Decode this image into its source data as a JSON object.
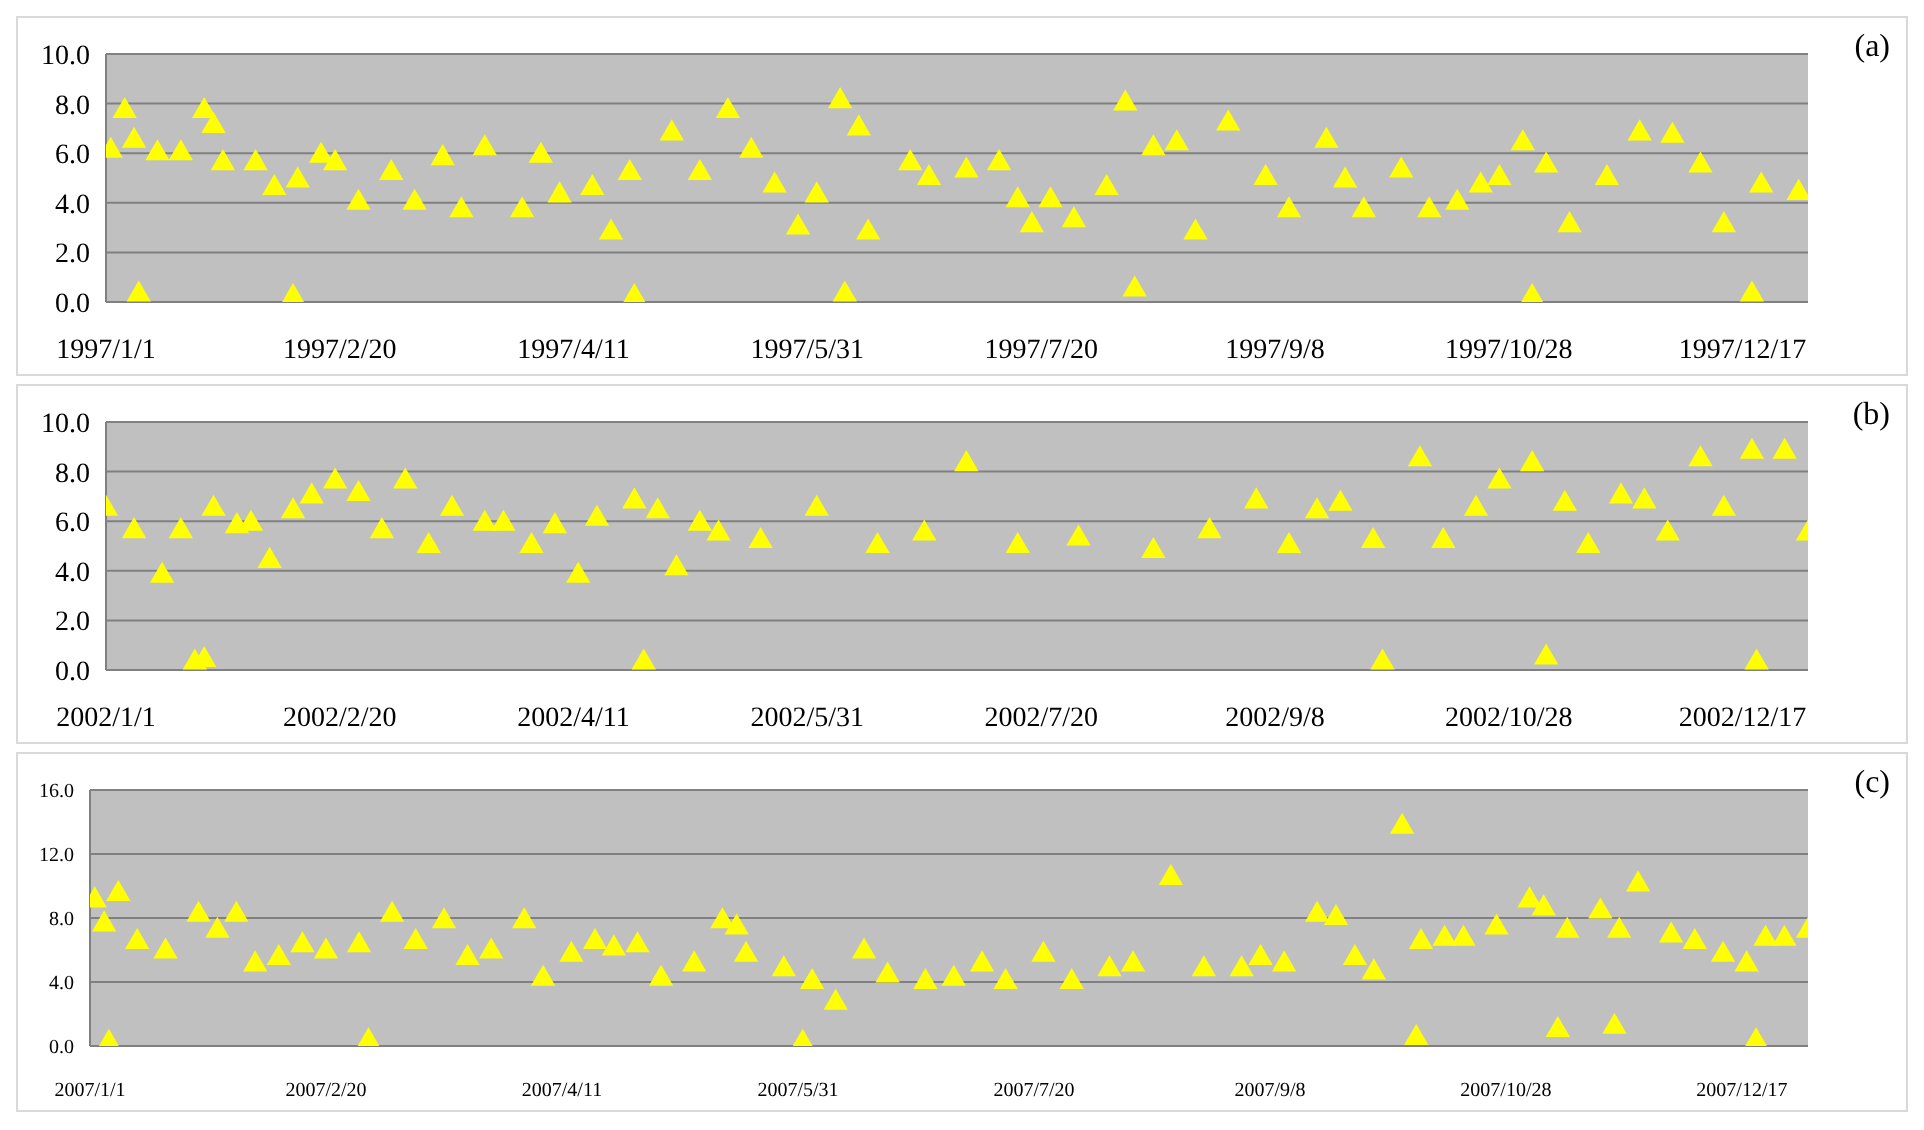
{
  "chart_data": [
    {
      "type": "scatter",
      "annotations": [
        "(a)"
      ],
      "color": "#ffff00",
      "marker": "triangle",
      "grid": "y",
      "xlim": [
        "1997-01-01",
        "1997-12-31"
      ],
      "xticks": [
        {
          "value": "1997-01-01",
          "label": "1997/1/1"
        },
        {
          "value": "1997-02-20",
          "label": "1997/2/20"
        },
        {
          "value": "1997-04-11",
          "label": "1997/4/11"
        },
        {
          "value": "1997-05-31",
          "label": "1997/5/31"
        },
        {
          "value": "1997-07-20",
          "label": "1997/7/20"
        },
        {
          "value": "1997-09-08",
          "label": "1997/9/8"
        },
        {
          "value": "1997-10-28",
          "label": "1997/10/28"
        },
        {
          "value": "1997-12-17",
          "label": "1997/12/17"
        }
      ],
      "ylim": [
        0,
        10
      ],
      "yticks": [
        {
          "value": 0,
          "label": "0.0"
        },
        {
          "value": 2,
          "label": "2.0"
        },
        {
          "value": 4,
          "label": "4.0"
        },
        {
          "value": 6,
          "label": "6.0"
        },
        {
          "value": 8,
          "label": "8.0"
        },
        {
          "value": 10,
          "label": "10.0"
        }
      ],
      "x": [
        "1997-01-02",
        "1997-01-05",
        "1997-01-07",
        "1997-01-12",
        "1997-01-17",
        "1997-01-22",
        "1997-01-24",
        "1997-01-26",
        "1997-02-02",
        "1997-02-06",
        "1997-02-11",
        "1997-02-16",
        "1997-02-19",
        "1997-02-24",
        "1997-03-03",
        "1997-03-08",
        "1997-03-14",
        "1997-03-18",
        "1997-03-23",
        "1997-03-31",
        "1997-04-04",
        "1997-04-08",
        "1997-04-15",
        "1997-04-19",
        "1997-04-23",
        "1997-05-02",
        "1997-05-08",
        "1997-05-14",
        "1997-05-19",
        "1997-05-24",
        "1997-05-29",
        "1997-06-02",
        "1997-06-07",
        "1997-06-11",
        "1997-06-13",
        "1997-06-22",
        "1997-06-26",
        "1997-07-04",
        "1997-07-11",
        "1997-07-15",
        "1997-07-18",
        "1997-07-22",
        "1997-07-27",
        "1997-08-03",
        "1997-08-07",
        "1997-08-13",
        "1997-08-18",
        "1997-08-22",
        "1997-08-29",
        "1997-09-06",
        "1997-09-11",
        "1997-09-19",
        "1997-09-23",
        "1997-09-27",
        "1997-10-05",
        "1997-10-11",
        "1997-10-17",
        "1997-10-22",
        "1997-10-26",
        "1997-10-31",
        "1997-11-05",
        "1997-11-10",
        "1997-11-18",
        "1997-11-25",
        "1997-12-02",
        "1997-12-08",
        "1997-12-13",
        "1997-12-21",
        "1997-12-29",
        "1997-01-08",
        "1997-02-10",
        "1997-04-24",
        "1997-06-08",
        "1997-08-09",
        "1997-11-02",
        "1997-12-19"
      ],
      "values": [
        6.1,
        7.7,
        6.5,
        6.0,
        6.0,
        7.7,
        7.1,
        5.6,
        5.6,
        4.6,
        4.9,
        5.9,
        5.6,
        4.0,
        5.2,
        4.0,
        5.8,
        3.7,
        6.2,
        3.7,
        5.9,
        4.3,
        4.6,
        2.8,
        5.2,
        6.8,
        5.2,
        7.7,
        6.1,
        4.7,
        3.0,
        4.3,
        8.1,
        7.0,
        2.8,
        5.6,
        5.0,
        5.3,
        5.6,
        4.1,
        3.1,
        4.1,
        3.3,
        4.6,
        8.0,
        6.2,
        6.4,
        2.8,
        7.2,
        5.0,
        3.7,
        6.5,
        4.9,
        3.7,
        5.3,
        3.7,
        4.0,
        4.7,
        5.0,
        6.4,
        5.5,
        3.1,
        5.0,
        6.8,
        6.7,
        5.5,
        3.1,
        4.7,
        4.4,
        0.3,
        0.2,
        0.2,
        0.3,
        0.5,
        0.2,
        0.3
      ]
    },
    {
      "type": "scatter",
      "annotations": [
        "(b)"
      ],
      "color": "#ffff00",
      "marker": "triangle",
      "grid": "y",
      "xlim": [
        "2002-01-01",
        "2002-12-31"
      ],
      "xticks": [
        {
          "value": "2002-01-01",
          "label": "2002/1/1"
        },
        {
          "value": "2002-02-20",
          "label": "2002/2/20"
        },
        {
          "value": "2002-04-11",
          "label": "2002/4/11"
        },
        {
          "value": "2002-05-31",
          "label": "2002/5/31"
        },
        {
          "value": "2002-07-20",
          "label": "2002/7/20"
        },
        {
          "value": "2002-09-08",
          "label": "2002/9/8"
        },
        {
          "value": "2002-10-28",
          "label": "2002/10/28"
        },
        {
          "value": "2002-12-17",
          "label": "2002/12/17"
        }
      ],
      "ylim": [
        0,
        10
      ],
      "yticks": [
        {
          "value": 0,
          "label": "0.0"
        },
        {
          "value": 2,
          "label": "2.0"
        },
        {
          "value": 4,
          "label": "4.0"
        },
        {
          "value": 6,
          "label": "6.0"
        },
        {
          "value": 8,
          "label": "8.0"
        },
        {
          "value": 10,
          "label": "10.0"
        }
      ],
      "x": [
        "2002-01-01",
        "2002-01-07",
        "2002-01-13",
        "2002-01-17",
        "2002-01-24",
        "2002-01-29",
        "2002-02-01",
        "2002-02-05",
        "2002-02-10",
        "2002-02-14",
        "2002-02-19",
        "2002-02-24",
        "2002-03-01",
        "2002-03-06",
        "2002-03-11",
        "2002-03-16",
        "2002-03-23",
        "2002-03-27",
        "2002-04-02",
        "2002-04-07",
        "2002-04-12",
        "2002-04-16",
        "2002-04-24",
        "2002-04-29",
        "2002-05-03",
        "2002-05-08",
        "2002-05-12",
        "2002-05-21",
        "2002-06-02",
        "2002-06-15",
        "2002-06-25",
        "2002-07-04",
        "2002-07-15",
        "2002-07-28",
        "2002-08-13",
        "2002-08-25",
        "2002-09-04",
        "2002-09-11",
        "2002-09-17",
        "2002-09-22",
        "2002-09-29",
        "2002-10-09",
        "2002-10-14",
        "2002-10-21",
        "2002-10-26",
        "2002-11-02",
        "2002-11-09",
        "2002-11-14",
        "2002-11-21",
        "2002-11-26",
        "2002-12-01",
        "2002-12-08",
        "2002-12-13",
        "2002-12-19",
        "2002-12-26",
        "2002-12-31",
        "2002-01-20",
        "2002-01-22",
        "2002-04-26",
        "2002-10-01",
        "2002-11-05",
        "2002-12-20"
      ],
      "values": [
        6.5,
        5.6,
        3.8,
        5.6,
        6.5,
        5.8,
        5.9,
        4.4,
        6.4,
        7.0,
        7.6,
        7.1,
        5.6,
        7.6,
        5.0,
        6.5,
        5.9,
        5.9,
        5.0,
        5.8,
        3.8,
        6.1,
        6.8,
        6.4,
        4.1,
        5.9,
        5.5,
        5.2,
        6.5,
        5.0,
        5.5,
        8.3,
        5.0,
        5.3,
        4.8,
        5.6,
        6.8,
        5.0,
        6.4,
        6.7,
        5.2,
        8.5,
        5.2,
        6.5,
        7.6,
        8.3,
        6.7,
        5.0,
        7.0,
        6.8,
        5.5,
        8.5,
        6.5,
        8.8,
        8.8,
        5.5,
        0.3,
        0.4,
        0.3,
        0.3,
        0.5,
        0.3
      ]
    },
    {
      "type": "scatter",
      "annotations": [
        "(c)"
      ],
      "color": "#ffff00",
      "marker": "triangle",
      "grid": "y",
      "xlim": [
        "2007-01-01",
        "2007-12-31"
      ],
      "xticks": [
        {
          "value": "2007-01-01",
          "label": "2007/1/1"
        },
        {
          "value": "2007-02-20",
          "label": "2007/2/20"
        },
        {
          "value": "2007-04-11",
          "label": "2007/4/11"
        },
        {
          "value": "2007-05-31",
          "label": "2007/5/31"
        },
        {
          "value": "2007-07-20",
          "label": "2007/7/20"
        },
        {
          "value": "2007-09-08",
          "label": "2007/9/8"
        },
        {
          "value": "2007-10-28",
          "label": "2007/10/28"
        },
        {
          "value": "2007-12-17",
          "label": "2007/12/17"
        }
      ],
      "ylim": [
        0,
        16
      ],
      "yticks": [
        {
          "value": 0,
          "label": "0.0"
        },
        {
          "value": 4,
          "label": "4.0"
        },
        {
          "value": 8,
          "label": "8.0"
        },
        {
          "value": 12,
          "label": "12.0"
        },
        {
          "value": 16,
          "label": "16.0"
        }
      ],
      "x": [
        "2007-01-02",
        "2007-01-04",
        "2007-01-07",
        "2007-01-11",
        "2007-01-17",
        "2007-01-24",
        "2007-01-28",
        "2007-02-01",
        "2007-02-05",
        "2007-02-10",
        "2007-02-15",
        "2007-02-20",
        "2007-02-27",
        "2007-03-06",
        "2007-03-11",
        "2007-03-17",
        "2007-03-22",
        "2007-03-27",
        "2007-04-03",
        "2007-04-07",
        "2007-04-13",
        "2007-04-18",
        "2007-04-22",
        "2007-04-27",
        "2007-05-02",
        "2007-05-09",
        "2007-05-15",
        "2007-05-18",
        "2007-05-20",
        "2007-05-28",
        "2007-06-03",
        "2007-06-08",
        "2007-06-14",
        "2007-06-19",
        "2007-06-27",
        "2007-07-03",
        "2007-07-09",
        "2007-07-14",
        "2007-07-22",
        "2007-07-28",
        "2007-08-05",
        "2007-08-10",
        "2007-08-18",
        "2007-08-25",
        "2007-09-02",
        "2007-09-06",
        "2007-09-11",
        "2007-09-18",
        "2007-09-22",
        "2007-09-26",
        "2007-09-30",
        "2007-10-06",
        "2007-10-10",
        "2007-10-15",
        "2007-10-19",
        "2007-10-26",
        "2007-11-02",
        "2007-11-05",
        "2007-11-10",
        "2007-11-17",
        "2007-11-21",
        "2007-11-25",
        "2007-12-02",
        "2007-12-07",
        "2007-12-13",
        "2007-12-18",
        "2007-12-22",
        "2007-12-26",
        "2007-12-31",
        "2007-01-05",
        "2007-03-01",
        "2007-06-01",
        "2007-10-09",
        "2007-11-08",
        "2007-11-20",
        "2007-12-20"
      ],
      "values": [
        9.1,
        7.6,
        9.5,
        6.5,
        5.9,
        8.2,
        7.2,
        8.2,
        5.1,
        5.5,
        6.3,
        5.9,
        6.3,
        8.2,
        6.5,
        7.8,
        5.5,
        5.9,
        7.8,
        4.2,
        5.7,
        6.5,
        6.1,
        6.3,
        4.2,
        5.1,
        7.8,
        7.4,
        5.7,
        4.8,
        4.0,
        2.7,
        5.9,
        4.4,
        4.0,
        4.2,
        5.1,
        4.0,
        5.7,
        4.0,
        4.8,
        5.1,
        10.5,
        4.8,
        4.8,
        5.5,
        5.1,
        8.2,
        8.0,
        5.5,
        4.6,
        13.7,
        6.5,
        6.7,
        6.7,
        7.4,
        9.1,
        8.6,
        7.2,
        8.4,
        7.2,
        10.1,
        6.9,
        6.5,
        5.7,
        5.1,
        6.7,
        6.7,
        7.2,
        0.2,
        0.3,
        0.2,
        0.5,
        1.0,
        1.2,
        0.3
      ]
    }
  ]
}
